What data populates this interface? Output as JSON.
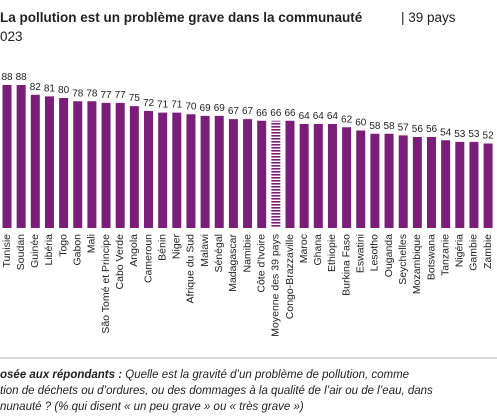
{
  "chart_data": {
    "type": "bar",
    "title": "La pollution est un problème grave dans la communauté",
    "subtitle": "| 39 pays",
    "subtitle2": "023",
    "categories": [
      "Tunisie",
      "Soudan",
      "Guinée",
      "Libéria",
      "Togo",
      "Gabon",
      "Mali",
      "São Tomé et Principe",
      "Cabo Verde",
      "Angola",
      "Cameroun",
      "Bénin",
      "Niger",
      "Afrique du Sud",
      "Malawi",
      "Sénégal",
      "Madagascar",
      "Namibie",
      "Côte d'Ivoire",
      "Moyenne des 39 pays",
      "Congo-Brazzaville",
      "Maroc",
      "Ghana",
      "Ethiopie",
      "Burkina Faso",
      "Eswatini",
      "Lesotho",
      "Ouganda",
      "Seychelles",
      "Mozambique",
      "Botswana",
      "Tanzanie",
      "Nigéria",
      "Gambie",
      "Zambie"
    ],
    "values": [
      88,
      88,
      82,
      81,
      80,
      78,
      78,
      77,
      77,
      75,
      72,
      71,
      71,
      70,
      69,
      69,
      67,
      67,
      66,
      66,
      66,
      64,
      64,
      64,
      62,
      60,
      58,
      58,
      57,
      56,
      56,
      54,
      53,
      53,
      52
    ],
    "color": "#7b1e7a",
    "highlight_category": "Moyenne des 39 pays",
    "note": {
      "lead": "osée aux répondants :",
      "lines": [
        " Quelle est la gravité d’un problème de pollution, comme",
        "tion de déchets ou d’ordures, ou des dommages à la qualité de l’air ou de l’eau, dans",
        "nunauté ? (% qui disent « un peu grave » ou « très grave »)"
      ]
    }
  }
}
